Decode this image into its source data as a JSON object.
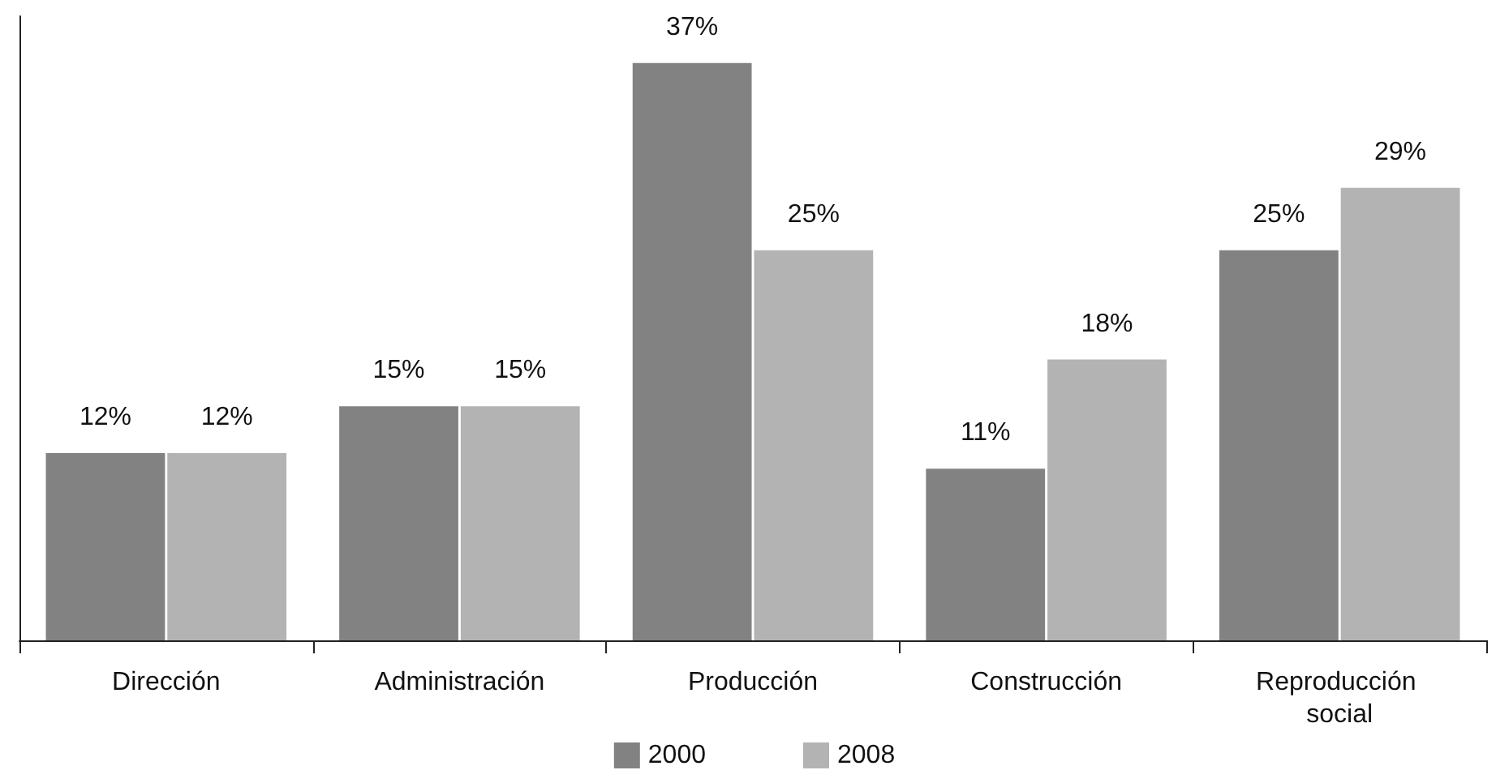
{
  "chart_data": {
    "type": "bar",
    "categories": [
      "Dirección",
      "Administración",
      "Producción",
      "Construcción",
      "Reproducción social"
    ],
    "series": [
      {
        "name": "2000",
        "color": "#828282",
        "values": [
          12,
          15,
          37,
          11,
          25
        ],
        "value_labels": [
          "12%",
          "15%",
          "37%",
          "11%",
          "25%"
        ]
      },
      {
        "name": "2008",
        "color": "#b3b3b3",
        "values": [
          12,
          15,
          25,
          18,
          29
        ],
        "value_labels": [
          "12%",
          "15%",
          "25%",
          "18%",
          "29%"
        ]
      }
    ],
    "legend": "bottom",
    "grid": false,
    "tick_labels": "x"
  }
}
